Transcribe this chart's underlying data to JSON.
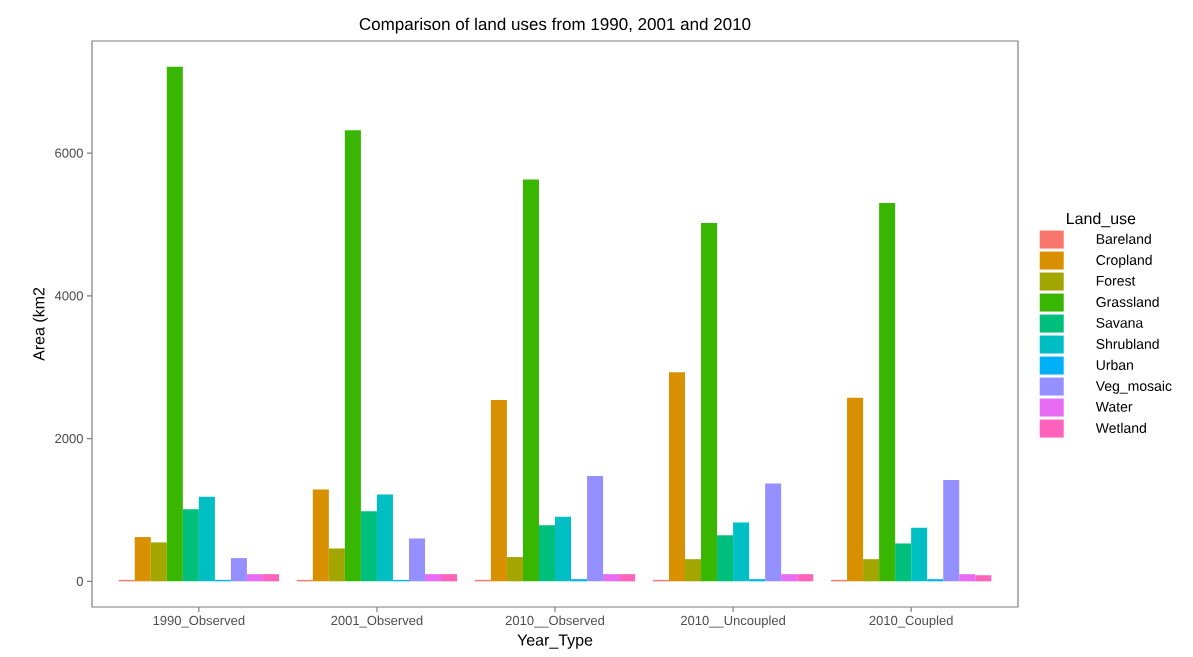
{
  "chart_data": {
    "type": "bar",
    "title": "Comparison of land uses from 1990, 2001 and 2010",
    "xlabel": "Year_Type",
    "ylabel": "Area (km2",
    "legend_title": "Land_use",
    "categories": [
      "1990_Observed",
      "2001_Observed",
      "2010__Observed",
      "2010__Uncoupled",
      "2010_Coupled"
    ],
    "series": [
      {
        "name": "Bareland",
        "color": "#f8766d",
        "values": [
          20,
          20,
          20,
          20,
          20
        ]
      },
      {
        "name": "Cropland",
        "color": "#d89000",
        "values": [
          620,
          1285,
          2540,
          2930,
          2570
        ]
      },
      {
        "name": "Forest",
        "color": "#a3a500",
        "values": [
          545,
          460,
          340,
          310,
          310
        ]
      },
      {
        "name": "Grassland",
        "color": "#39b600",
        "values": [
          7210,
          6320,
          5630,
          5020,
          5300
        ]
      },
      {
        "name": "Savana",
        "color": "#00bf7d",
        "values": [
          1010,
          980,
          785,
          645,
          530
        ]
      },
      {
        "name": "Shrubland",
        "color": "#00bfc4",
        "values": [
          1185,
          1215,
          905,
          825,
          750
        ]
      },
      {
        "name": "Urban",
        "color": "#00b0f6",
        "values": [
          20,
          20,
          30,
          30,
          30
        ]
      },
      {
        "name": "Veg_mosaic",
        "color": "#9590ff",
        "values": [
          325,
          600,
          1475,
          1370,
          1420
        ]
      },
      {
        "name": "Water",
        "color": "#e76bf3",
        "values": [
          100,
          100,
          100,
          100,
          100
        ]
      },
      {
        "name": "Wetland",
        "color": "#ff62bc",
        "values": [
          100,
          100,
          100,
          100,
          85
        ]
      }
    ],
    "ylim": [
      -360,
      7570
    ],
    "yticks": [
      0,
      2000,
      4000,
      6000
    ],
    "grid": false,
    "legend": "right"
  }
}
